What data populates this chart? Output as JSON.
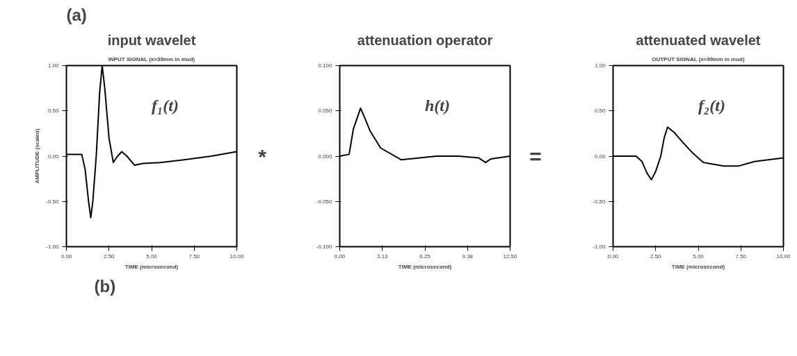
{
  "chart_data": [
    {
      "type": "line",
      "title": "input wavelet",
      "subtitle": "INPUT SIGNAL (x=39mm in mud)",
      "xlabel": "TIME (microsecond)",
      "ylabel": "AMPLITUDE (scaled)",
      "x": [
        0,
        0.9,
        1.1,
        1.3,
        1.43,
        1.55,
        1.75,
        1.95,
        2.1,
        2.25,
        2.5,
        2.75,
        3.0,
        3.25,
        3.55,
        4.0,
        4.5,
        5.5,
        6.9,
        8.5,
        10
      ],
      "series": [
        {
          "color": "#000000",
          "values": [
            0.02,
            0.02,
            -0.15,
            -0.5,
            -0.68,
            -0.5,
            0,
            0.7,
            1.0,
            0.75,
            0.2,
            -0.07,
            0,
            0.05,
            0,
            -0.1,
            -0.08,
            -0.07,
            -0.04,
            0.0,
            0.05
          ]
        }
      ],
      "xlim": [
        0,
        10
      ],
      "ylim": [
        -1,
        1
      ],
      "xticks": [
        {
          "value": 0,
          "label": "0.00"
        },
        {
          "value": 2.5,
          "label": "2.50"
        },
        {
          "value": 5,
          "label": "5.00"
        },
        {
          "value": 7.5,
          "label": "7.50"
        },
        {
          "value": 10,
          "label": "10.00"
        }
      ],
      "yticks": [
        {
          "value": -1,
          "label": "-1.00"
        },
        {
          "value": -0.5,
          "label": "-0.50"
        },
        {
          "value": 0,
          "label": "0.00"
        },
        {
          "value": 0.5,
          "label": "0.50"
        },
        {
          "value": 1,
          "label": "1.00"
        }
      ],
      "annotations": [
        "f₁(t)",
        "(a)",
        "(b)"
      ]
    },
    {
      "type": "line",
      "title": "attenuation operator",
      "xlabel": "TIME (microsecond)",
      "x": [
        0,
        0.69,
        1.0,
        1.53,
        1.9,
        2.22,
        3.0,
        4.5,
        7.1,
        8.7,
        10.2,
        10.7,
        11.1,
        12.5
      ],
      "series": [
        {
          "color": "#000000",
          "values": [
            0,
            0.002,
            0.03,
            0.053,
            0.04,
            0.028,
            0.009,
            -0.004,
            0.0,
            0.0,
            -0.002,
            -0.007,
            -0.003,
            0.0
          ]
        }
      ],
      "xlim": [
        0,
        12.5
      ],
      "ylim": [
        -0.1,
        0.1
      ],
      "xticks": [
        {
          "value": 0,
          "label": "0.00"
        },
        {
          "value": 3.125,
          "label": "3.13"
        },
        {
          "value": 6.25,
          "label": "6.25"
        },
        {
          "value": 9.375,
          "label": "9.38"
        },
        {
          "value": 12.5,
          "label": "12.50"
        }
      ],
      "yticks": [
        {
          "value": -0.1,
          "label": "-0.100"
        },
        {
          "value": -0.05,
          "label": "-0.050"
        },
        {
          "value": 0,
          "label": "0.000"
        },
        {
          "value": 0.05,
          "label": "0.050"
        },
        {
          "value": 0.1,
          "label": "0.100"
        }
      ],
      "annotations": [
        "h(t)",
        "*"
      ]
    },
    {
      "type": "line",
      "title": "attenuated wavelet",
      "subtitle": "OUTPUT SIGNAL (x=99mm in mud)",
      "xlabel": "TIME (microsecond)",
      "x": [
        0,
        1.35,
        1.7,
        2.0,
        2.25,
        2.5,
        2.8,
        3.0,
        3.2,
        3.6,
        4.1,
        4.7,
        5.3,
        6.5,
        7.35,
        8.3,
        10
      ],
      "series": [
        {
          "color": "#000000",
          "values": [
            0,
            0,
            -0.06,
            -0.19,
            -0.26,
            -0.17,
            0,
            0.2,
            0.32,
            0.26,
            0.15,
            0.03,
            -0.07,
            -0.11,
            -0.11,
            -0.06,
            -0.02
          ]
        }
      ],
      "xlim": [
        0,
        10
      ],
      "ylim": [
        -1,
        1
      ],
      "xticks": [
        {
          "value": 0,
          "label": "0.00"
        },
        {
          "value": 2.5,
          "label": "2.50"
        },
        {
          "value": 5,
          "label": "5.00"
        },
        {
          "value": 7.5,
          "label": "7.50"
        },
        {
          "value": 10,
          "label": "10.00"
        }
      ],
      "yticks": [
        {
          "value": -1,
          "label": "-1.00"
        },
        {
          "value": -0.5,
          "label": "-0.50"
        },
        {
          "value": 0,
          "label": "0.00"
        },
        {
          "value": 0.5,
          "label": "0.50"
        },
        {
          "value": 1,
          "label": "1.00"
        }
      ],
      "annotations": [
        "f₂(t)",
        "="
      ]
    }
  ]
}
